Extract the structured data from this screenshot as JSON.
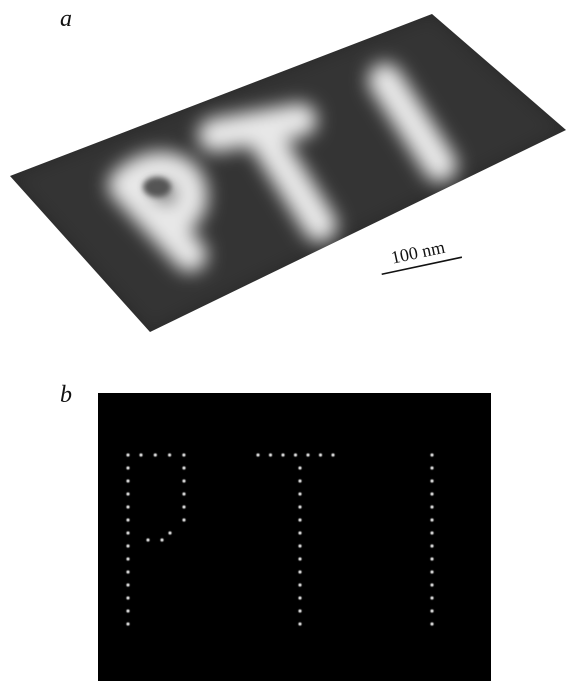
{
  "panels": [
    {
      "label": "a",
      "scale_bar": "100 nm"
    },
    {
      "label": "b"
    }
  ]
}
